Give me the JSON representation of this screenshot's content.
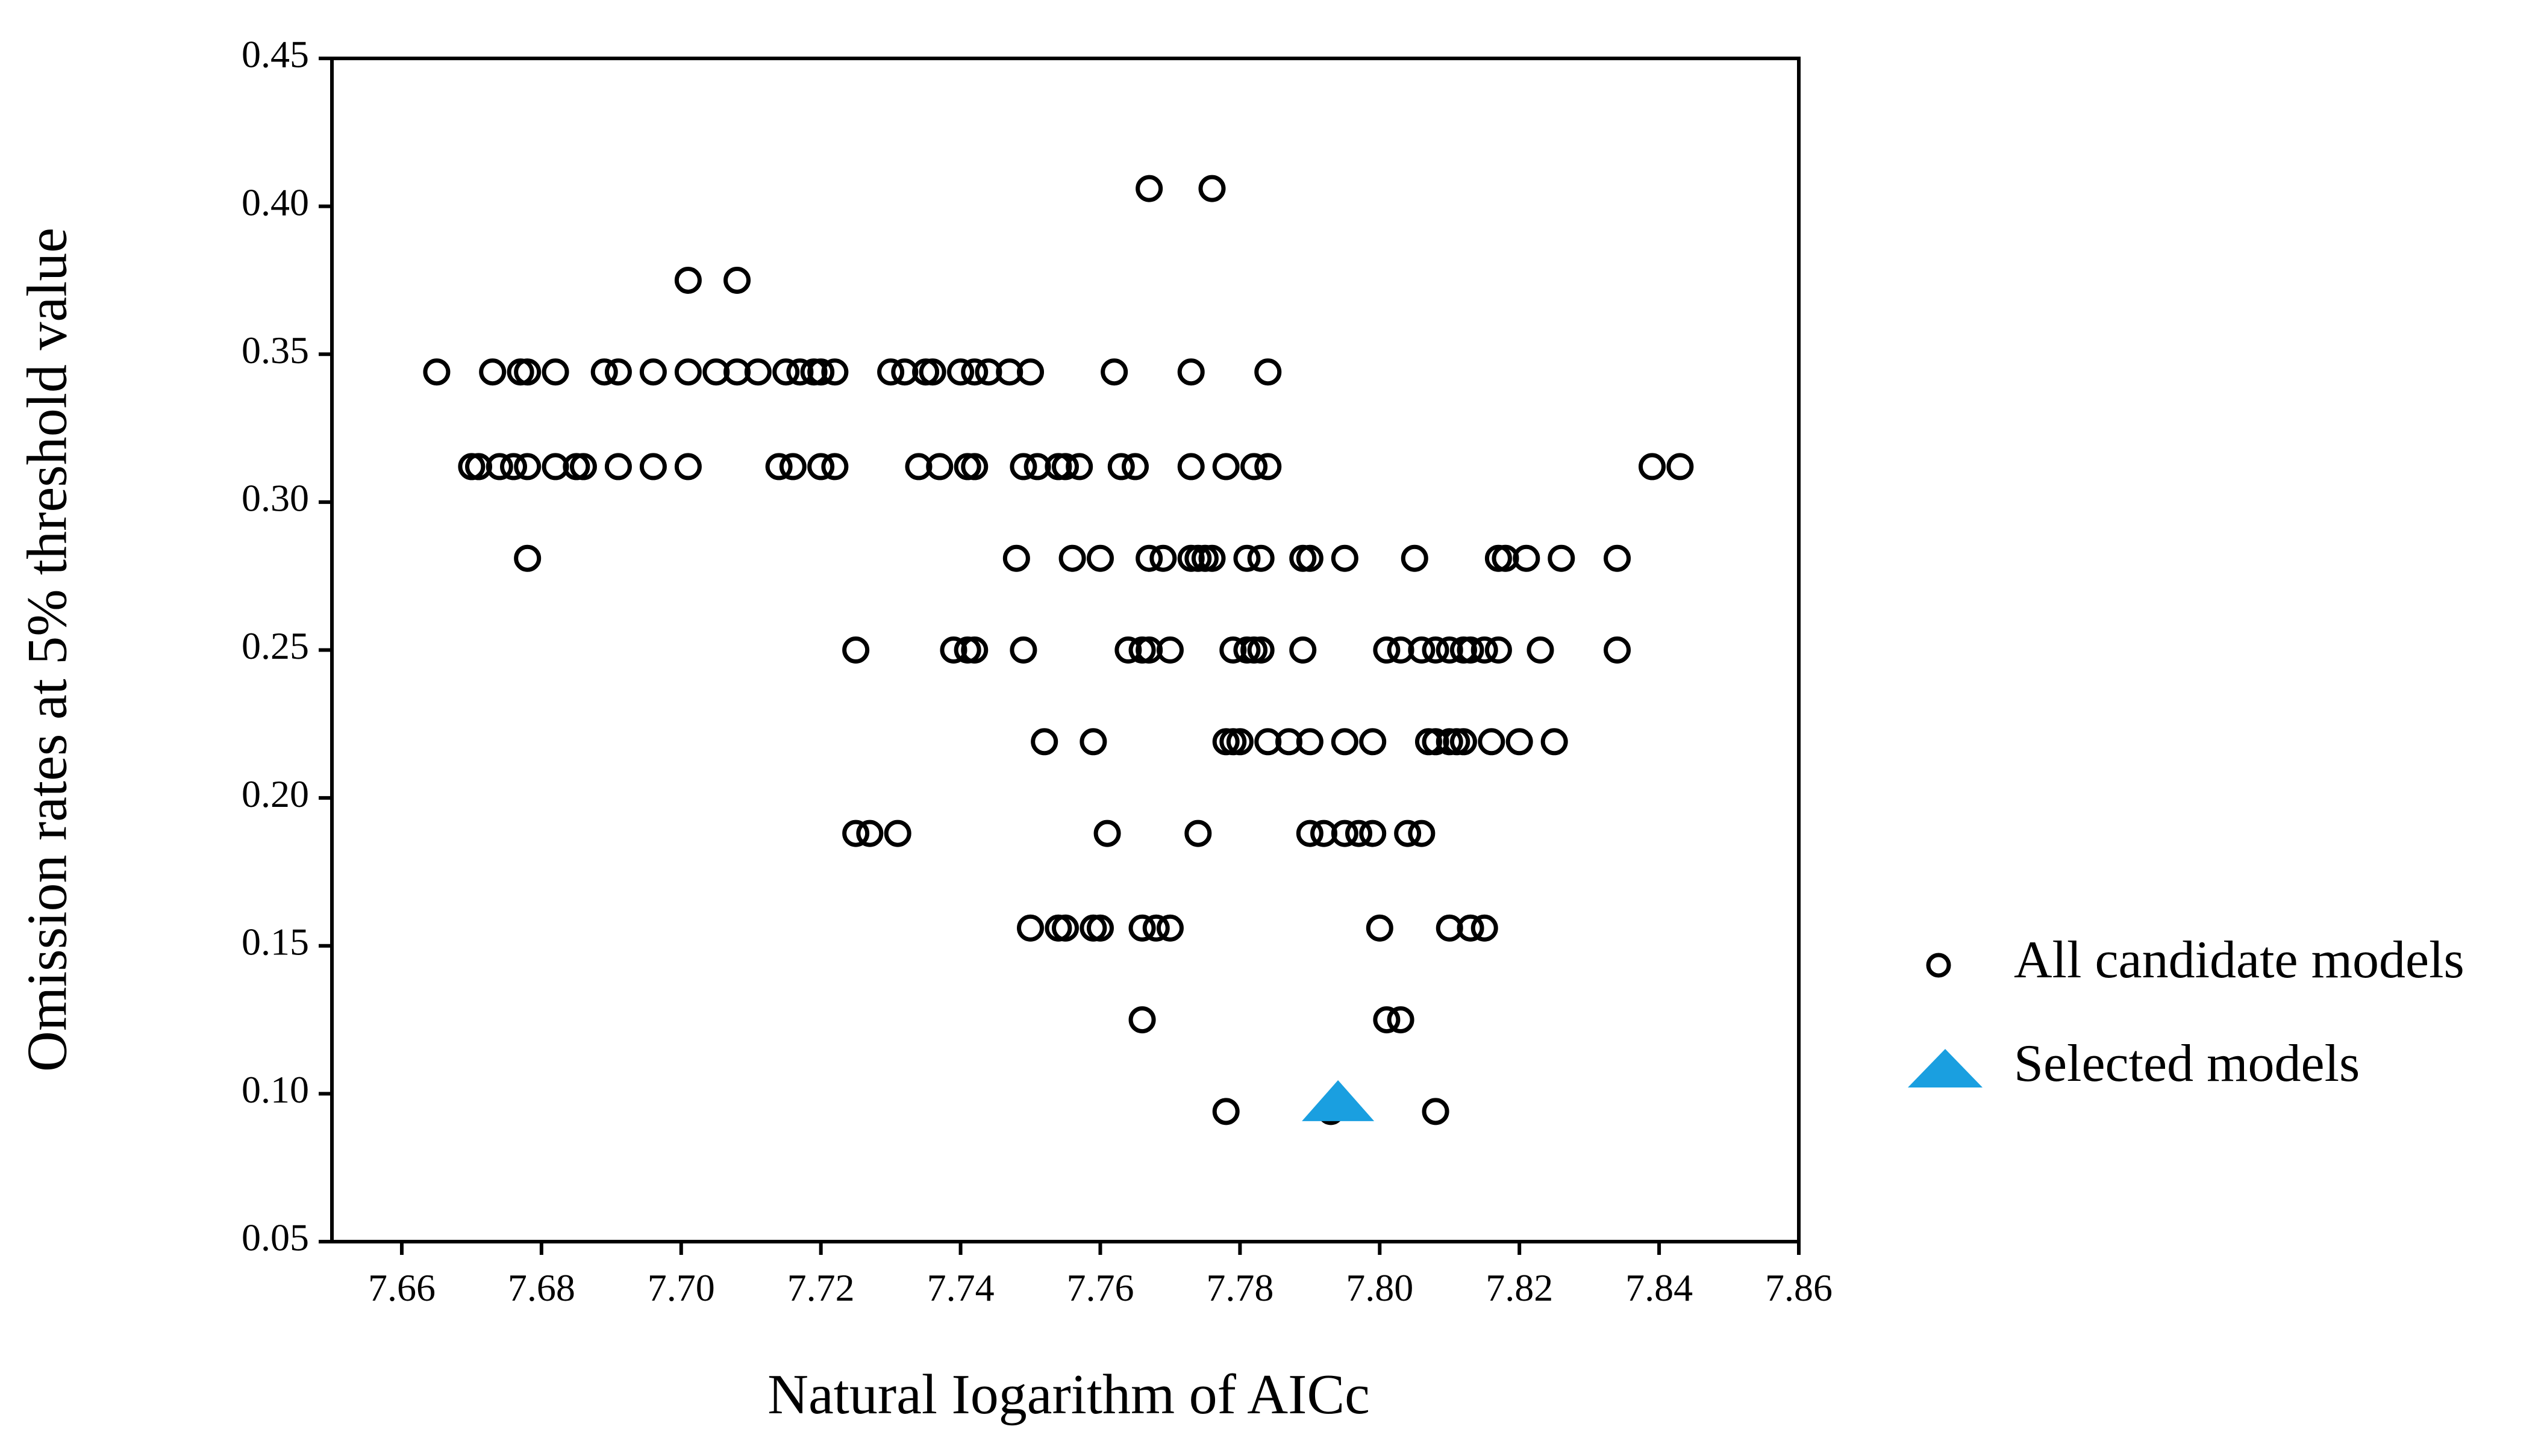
{
  "chart_data": {
    "type": "scatter",
    "title": "",
    "xlabel": "Natural Iogarithm of AICc",
    "ylabel": "Omission rates at 5% threshold value",
    "xlim": [
      7.65,
      7.86
    ],
    "ylim": [
      0.05,
      0.45
    ],
    "xticks": [
      "7.66",
      "7.68",
      "7.70",
      "7.72",
      "7.74",
      "7.76",
      "7.78",
      "7.80",
      "7.82",
      "7.84",
      "7.86"
    ],
    "yticks": [
      "0.05",
      "0.10",
      "0.15",
      "0.20",
      "0.25",
      "0.30",
      "0.35",
      "0.40",
      "0.45"
    ],
    "grid": false,
    "legend_position": "right",
    "colors": {
      "candidate": "#000000",
      "selected": "#1a9fe0"
    },
    "series": [
      {
        "name": "All candidate models",
        "marker": "open-circle",
        "points": [
          [
            7.767,
            0.406
          ],
          [
            7.776,
            0.406
          ],
          [
            7.701,
            0.375
          ],
          [
            7.708,
            0.375
          ],
          [
            7.665,
            0.344
          ],
          [
            7.673,
            0.344
          ],
          [
            7.677,
            0.344
          ],
          [
            7.678,
            0.344
          ],
          [
            7.682,
            0.344
          ],
          [
            7.689,
            0.344
          ],
          [
            7.691,
            0.344
          ],
          [
            7.696,
            0.344
          ],
          [
            7.701,
            0.344
          ],
          [
            7.705,
            0.344
          ],
          [
            7.708,
            0.344
          ],
          [
            7.711,
            0.344
          ],
          [
            7.715,
            0.344
          ],
          [
            7.717,
            0.344
          ],
          [
            7.719,
            0.344
          ],
          [
            7.72,
            0.344
          ],
          [
            7.722,
            0.344
          ],
          [
            7.73,
            0.344
          ],
          [
            7.732,
            0.344
          ],
          [
            7.735,
            0.344
          ],
          [
            7.736,
            0.344
          ],
          [
            7.74,
            0.344
          ],
          [
            7.742,
            0.344
          ],
          [
            7.744,
            0.344
          ],
          [
            7.747,
            0.344
          ],
          [
            7.75,
            0.344
          ],
          [
            7.762,
            0.344
          ],
          [
            7.773,
            0.344
          ],
          [
            7.784,
            0.344
          ],
          [
            7.67,
            0.312
          ],
          [
            7.671,
            0.312
          ],
          [
            7.674,
            0.312
          ],
          [
            7.676,
            0.312
          ],
          [
            7.678,
            0.312
          ],
          [
            7.682,
            0.312
          ],
          [
            7.685,
            0.312
          ],
          [
            7.686,
            0.312
          ],
          [
            7.691,
            0.312
          ],
          [
            7.696,
            0.312
          ],
          [
            7.701,
            0.312
          ],
          [
            7.714,
            0.312
          ],
          [
            7.716,
            0.312
          ],
          [
            7.72,
            0.312
          ],
          [
            7.722,
            0.312
          ],
          [
            7.734,
            0.312
          ],
          [
            7.737,
            0.312
          ],
          [
            7.741,
            0.312
          ],
          [
            7.742,
            0.312
          ],
          [
            7.749,
            0.312
          ],
          [
            7.751,
            0.312
          ],
          [
            7.754,
            0.312
          ],
          [
            7.755,
            0.312
          ],
          [
            7.757,
            0.312
          ],
          [
            7.763,
            0.312
          ],
          [
            7.765,
            0.312
          ],
          [
            7.773,
            0.312
          ],
          [
            7.778,
            0.312
          ],
          [
            7.782,
            0.312
          ],
          [
            7.784,
            0.312
          ],
          [
            7.839,
            0.312
          ],
          [
            7.843,
            0.312
          ],
          [
            7.678,
            0.281
          ],
          [
            7.748,
            0.281
          ],
          [
            7.756,
            0.281
          ],
          [
            7.76,
            0.281
          ],
          [
            7.767,
            0.281
          ],
          [
            7.769,
            0.281
          ],
          [
            7.773,
            0.281
          ],
          [
            7.774,
            0.281
          ],
          [
            7.775,
            0.281
          ],
          [
            7.776,
            0.281
          ],
          [
            7.781,
            0.281
          ],
          [
            7.783,
            0.281
          ],
          [
            7.789,
            0.281
          ],
          [
            7.79,
            0.281
          ],
          [
            7.795,
            0.281
          ],
          [
            7.805,
            0.281
          ],
          [
            7.817,
            0.281
          ],
          [
            7.818,
            0.281
          ],
          [
            7.821,
            0.281
          ],
          [
            7.826,
            0.281
          ],
          [
            7.834,
            0.281
          ],
          [
            7.725,
            0.25
          ],
          [
            7.739,
            0.25
          ],
          [
            7.741,
            0.25
          ],
          [
            7.742,
            0.25
          ],
          [
            7.749,
            0.25
          ],
          [
            7.764,
            0.25
          ],
          [
            7.766,
            0.25
          ],
          [
            7.767,
            0.25
          ],
          [
            7.77,
            0.25
          ],
          [
            7.779,
            0.25
          ],
          [
            7.781,
            0.25
          ],
          [
            7.782,
            0.25
          ],
          [
            7.783,
            0.25
          ],
          [
            7.789,
            0.25
          ],
          [
            7.801,
            0.25
          ],
          [
            7.803,
            0.25
          ],
          [
            7.806,
            0.25
          ],
          [
            7.808,
            0.25
          ],
          [
            7.81,
            0.25
          ],
          [
            7.812,
            0.25
          ],
          [
            7.813,
            0.25
          ],
          [
            7.815,
            0.25
          ],
          [
            7.817,
            0.25
          ],
          [
            7.823,
            0.25
          ],
          [
            7.834,
            0.25
          ],
          [
            7.752,
            0.219
          ],
          [
            7.759,
            0.219
          ],
          [
            7.778,
            0.219
          ],
          [
            7.779,
            0.219
          ],
          [
            7.78,
            0.219
          ],
          [
            7.784,
            0.219
          ],
          [
            7.787,
            0.219
          ],
          [
            7.79,
            0.219
          ],
          [
            7.795,
            0.219
          ],
          [
            7.799,
            0.219
          ],
          [
            7.807,
            0.219
          ],
          [
            7.808,
            0.219
          ],
          [
            7.81,
            0.219
          ],
          [
            7.811,
            0.219
          ],
          [
            7.812,
            0.219
          ],
          [
            7.816,
            0.219
          ],
          [
            7.82,
            0.219
          ],
          [
            7.825,
            0.219
          ],
          [
            7.725,
            0.188
          ],
          [
            7.727,
            0.188
          ],
          [
            7.731,
            0.188
          ],
          [
            7.761,
            0.188
          ],
          [
            7.774,
            0.188
          ],
          [
            7.79,
            0.188
          ],
          [
            7.792,
            0.188
          ],
          [
            7.795,
            0.188
          ],
          [
            7.797,
            0.188
          ],
          [
            7.799,
            0.188
          ],
          [
            7.804,
            0.188
          ],
          [
            7.806,
            0.188
          ],
          [
            7.75,
            0.156
          ],
          [
            7.754,
            0.156
          ],
          [
            7.755,
            0.156
          ],
          [
            7.759,
            0.156
          ],
          [
            7.76,
            0.156
          ],
          [
            7.766,
            0.156
          ],
          [
            7.768,
            0.156
          ],
          [
            7.77,
            0.156
          ],
          [
            7.8,
            0.156
          ],
          [
            7.81,
            0.156
          ],
          [
            7.813,
            0.156
          ],
          [
            7.815,
            0.156
          ],
          [
            7.766,
            0.125
          ],
          [
            7.801,
            0.125
          ],
          [
            7.803,
            0.125
          ],
          [
            7.778,
            0.094
          ],
          [
            7.793,
            0.094
          ],
          [
            7.808,
            0.094
          ]
        ]
      },
      {
        "name": "Selected models",
        "marker": "filled-triangle",
        "points": [
          [
            7.793,
            0.094
          ]
        ]
      }
    ]
  }
}
